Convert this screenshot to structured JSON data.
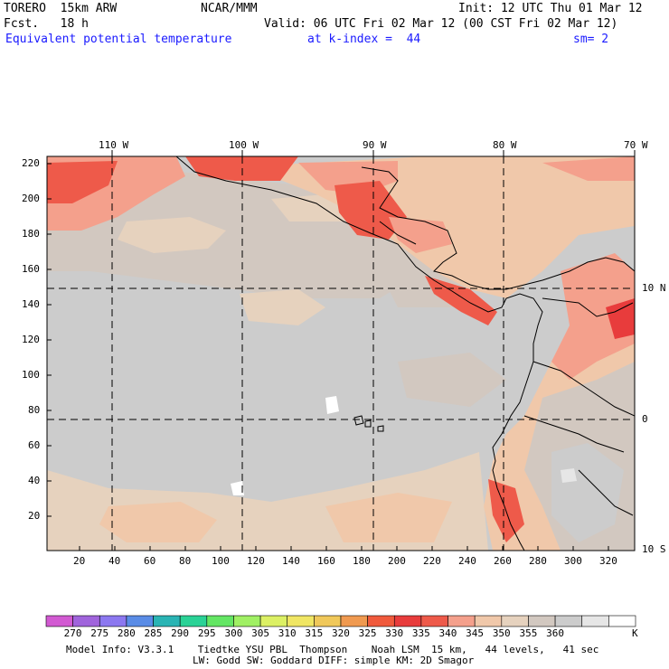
{
  "header": {
    "model": "TORERO  15km ARW",
    "org": "NCAR/MMM",
    "init": "Init: 12 UTC Thu 01 Mar 12",
    "fcst": "Fcst.   18 h",
    "valid": "Valid: 06 UTC Fri 02 Mar 12 (00 CST Fri 02 Mar 12)",
    "field": "Equivalent potential temperature",
    "level": "at k-index =  44",
    "smooth": "sm= 2"
  },
  "map": {
    "lon_labels": [
      "110 W",
      "100 W",
      "90 W",
      "80 W",
      "70 W"
    ],
    "lat_labels": [
      "10 N",
      "0",
      "10 S"
    ],
    "y_ticks": [
      "220",
      "200",
      "180",
      "160",
      "140",
      "120",
      "100",
      "80",
      "60",
      "40",
      "20"
    ],
    "x_ticks": [
      "20",
      "40",
      "60",
      "80",
      "100",
      "120",
      "140",
      "160",
      "180",
      "200",
      "220",
      "240",
      "260",
      "280",
      "300",
      "320"
    ]
  },
  "colorbar": {
    "colors": [
      "#d25ad2",
      "#a064dc",
      "#8c78f0",
      "#5a8ce6",
      "#2ab4b4",
      "#2ad296",
      "#64e664",
      "#a0f064",
      "#dcf064",
      "#f0e664",
      "#f0c85a",
      "#f09a50",
      "#f05a3c",
      "#e83c3c",
      "#ee5a4a",
      "#f4a08c",
      "#f0c8aa",
      "#e6d2be",
      "#d2c8c0",
      "#cccccc",
      "#e6e6e6",
      "#ffffff"
    ],
    "labels": [
      "270",
      "275",
      "280",
      "285",
      "290",
      "295",
      "300",
      "305",
      "310",
      "315",
      "320",
      "325",
      "330",
      "335",
      "340",
      "345",
      "350",
      "355",
      "360",
      "K"
    ]
  },
  "footer": {
    "line1": "Model Info: V3.3.1    Tiedtke YSU PBL  Thompson    Noah LSM  15 km,   44 levels,   41 sec",
    "line2": "LW: Godd SW: Goddard DIFF: simple KM: 2D Smagor"
  }
}
